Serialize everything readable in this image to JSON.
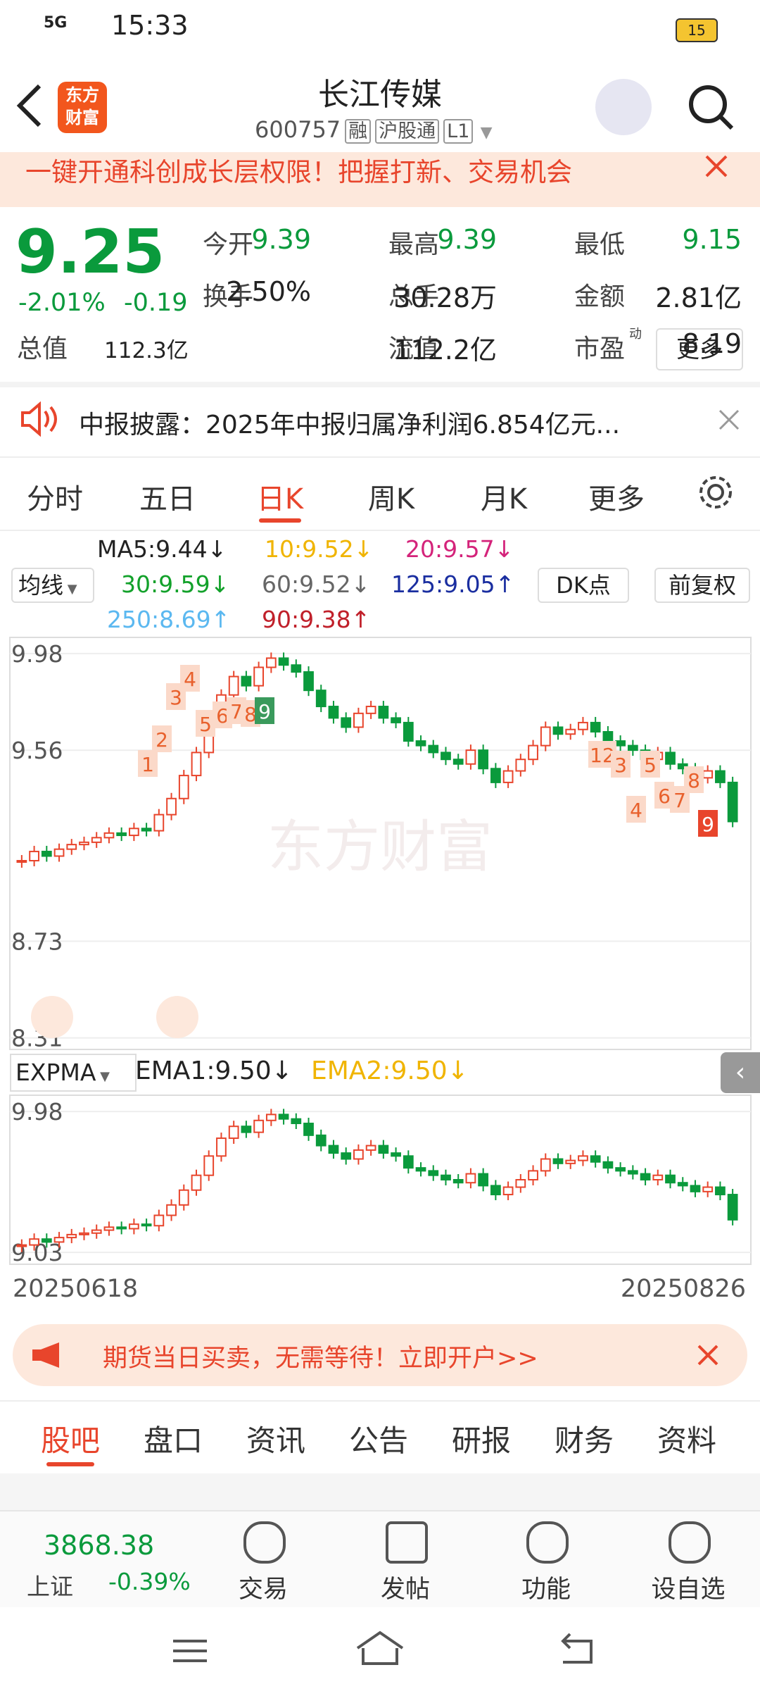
{
  "status_bar": {
    "network": "5G",
    "time": "15:33",
    "battery": "15"
  },
  "header": {
    "logo": [
      "东方",
      "财富"
    ],
    "title": "长江传媒",
    "code": "600757",
    "tags": [
      "融",
      "沪股通",
      "L1"
    ]
  },
  "banner": {
    "text": "一键开通科创成长层权限！把握打新、交易机会"
  },
  "quote": {
    "price": "9.25",
    "change_pct": "-2.01%",
    "change": "-0.19",
    "fields": [
      {
        "label": "今开",
        "value": "9.39"
      },
      {
        "label": "最高",
        "value": "9.39"
      },
      {
        "label": "最低",
        "value": "9.15"
      },
      {
        "label": "换手",
        "value": "2.50%"
      },
      {
        "label": "总手",
        "value": "30.28万"
      },
      {
        "label": "金额",
        "value": "2.81亿"
      },
      {
        "label": "总值",
        "value": "112.3亿"
      },
      {
        "label": "流值",
        "value": "112.2亿"
      },
      {
        "label": "市盈",
        "sup": "动",
        "value": "8.19"
      }
    ],
    "more": "更多"
  },
  "notice": {
    "text": "中报披露：2025年中报归属净利润6.854亿元..."
  },
  "period_tabs": {
    "items": [
      "分时",
      "五日",
      "日K",
      "周K",
      "月K",
      "更多"
    ],
    "active": 2
  },
  "ma_legend": {
    "button": "均线",
    "items": [
      "MA5:9.44↓",
      "10:9.52↓",
      "20:9.57↓",
      "30:9.59↓",
      "60:9.52↓",
      "125:9.05↑",
      "250:8.69↑",
      "90:9.38↑"
    ],
    "colors": [
      "#222",
      "#f0b400",
      "#d4237a",
      "#12a12a",
      "#666",
      "#1a2ea0",
      "#5bb8f0",
      "#c0202a"
    ],
    "dk": "DK点",
    "adjust": "前复权"
  },
  "chart_data": {
    "type": "candlestick",
    "watermark": "东方财富",
    "closes": [
      9.08,
      9.12,
      9.1,
      9.13,
      9.15,
      9.16,
      9.18,
      9.2,
      9.19,
      9.22,
      9.21,
      9.28,
      9.35,
      9.45,
      9.55,
      9.68,
      9.8,
      9.88,
      9.84,
      9.92,
      9.96,
      9.93,
      9.9,
      9.82,
      9.75,
      9.7,
      9.66,
      9.72,
      9.75,
      9.7,
      9.68,
      9.6,
      9.58,
      9.55,
      9.52,
      9.5,
      9.56,
      9.48,
      9.42,
      9.47,
      9.52,
      9.58,
      9.66,
      9.63,
      9.65,
      9.68,
      9.64,
      9.6,
      9.58,
      9.56,
      9.52,
      9.55,
      9.5,
      9.48,
      9.44,
      9.47,
      9.42,
      9.25
    ],
    "ylim": [
      8.26,
      10.05
    ],
    "yticks": [
      9.98,
      9.56,
      8.73,
      8.31
    ],
    "markers": [
      "1",
      "2",
      "3",
      "4",
      "5",
      "6",
      "7",
      "8",
      "9",
      "12",
      "3",
      "4",
      "5",
      "6",
      "7",
      "8",
      "9"
    ],
    "sub": {
      "indicator": "EXPMA",
      "ema1": "EMA1:9.50↓",
      "ema2": "EMA2:9.50↓",
      "ylim": [
        8.95,
        10.09
      ],
      "yticks": [
        9.98,
        9.03
      ]
    },
    "dates": [
      "20250618",
      "20250826"
    ]
  },
  "ad": {
    "text": "期货当日买卖，无需等待！立即开户>>"
  },
  "bottom_tabs": {
    "items": [
      "股吧",
      "盘口",
      "资讯",
      "公告",
      "研报",
      "财务",
      "资料"
    ],
    "active": 0
  },
  "index": {
    "value": "3868.38",
    "name": "上证",
    "change": "-0.39%"
  },
  "toolbar": [
    "交易",
    "发帖",
    "功能",
    "设自选"
  ]
}
